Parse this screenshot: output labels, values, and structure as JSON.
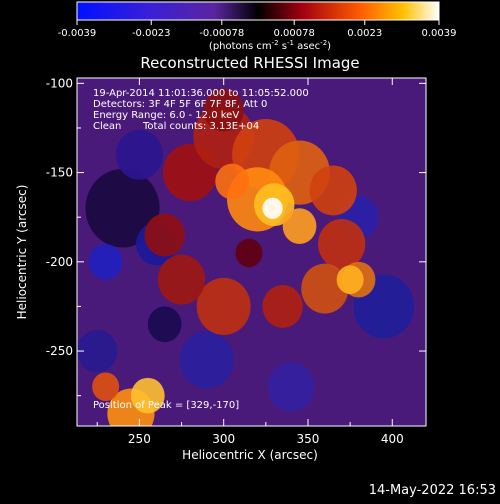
{
  "colorbar": {
    "tick_labels": [
      "-0.0039",
      "-0.0023",
      "-0.00078",
      "0.00078",
      "0.0023",
      "0.0039"
    ],
    "units_main": "(photons cm",
    "units_sup1": "-2",
    "units_s": " s",
    "units_sup2": "-1",
    "units_asec": " asec",
    "units_sup3": "-2",
    "units_close": ")"
  },
  "chart_data": {
    "type": "heatmap",
    "title": "Reconstructed RHESSI Image",
    "xlabel": "Heliocentric X (arcsec)",
    "ylabel": "Heliocentric Y (arcsec)",
    "xlim": [
      213,
      420
    ],
    "ylim": [
      -292,
      -97
    ],
    "xticks": [
      250,
      300,
      350,
      400
    ],
    "yticks": [
      -100,
      -150,
      -200,
      -250
    ],
    "colorbar_range": [
      -0.0039,
      0.0039
    ],
    "peak": [
      329,
      -170
    ],
    "annotations": [
      "19-Apr-2014 11:01:36.000 to 11:05:52.000",
      "Detectors: 3F 4F 5F 6F 7F 8F, Att 0",
      "Energy Range: 6.0 - 12.0 keV",
      "Clean",
      "Total counts: 3.13E+04"
    ],
    "peak_label": "Position of Peak = [329,-170]"
  },
  "footer": {
    "timestamp": "14-May-2022 16:53"
  },
  "colors": {
    "background": "#000000",
    "foreground": "#ffffff"
  }
}
